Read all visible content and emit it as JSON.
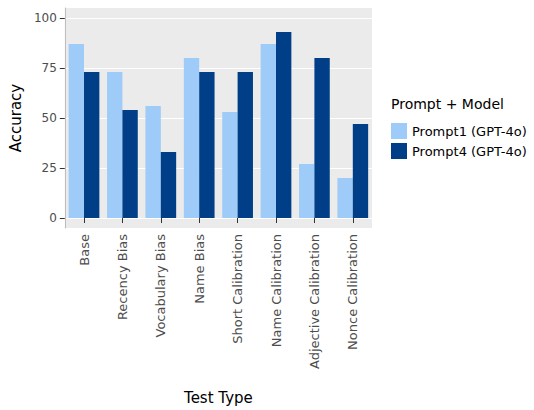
{
  "chart_data": {
    "type": "bar",
    "x_label": "Test Type",
    "y_label": "Accuracy",
    "legend_title": "Prompt + Model",
    "categories": [
      "Base",
      "Recency Bias",
      "Vocabulary Bias",
      "Name Bias",
      "Short Calibration",
      "Name Calibration",
      "Adjective Calibration",
      "Nonce Calibration"
    ],
    "series": [
      {
        "name": "Prompt1 (GPT-4o)",
        "color": "#9ecbf7",
        "values": [
          87,
          73,
          56,
          80,
          53,
          87,
          27,
          20
        ]
      },
      {
        "name": "Prompt4 (GPT-4o)",
        "color": "#003f87",
        "values": [
          73,
          54,
          33,
          73,
          73,
          93,
          80,
          47
        ]
      }
    ],
    "ylim": [
      -5,
      105
    ],
    "yticks": [
      0,
      25,
      50,
      75,
      100
    ],
    "grid": true,
    "legend": "right"
  }
}
